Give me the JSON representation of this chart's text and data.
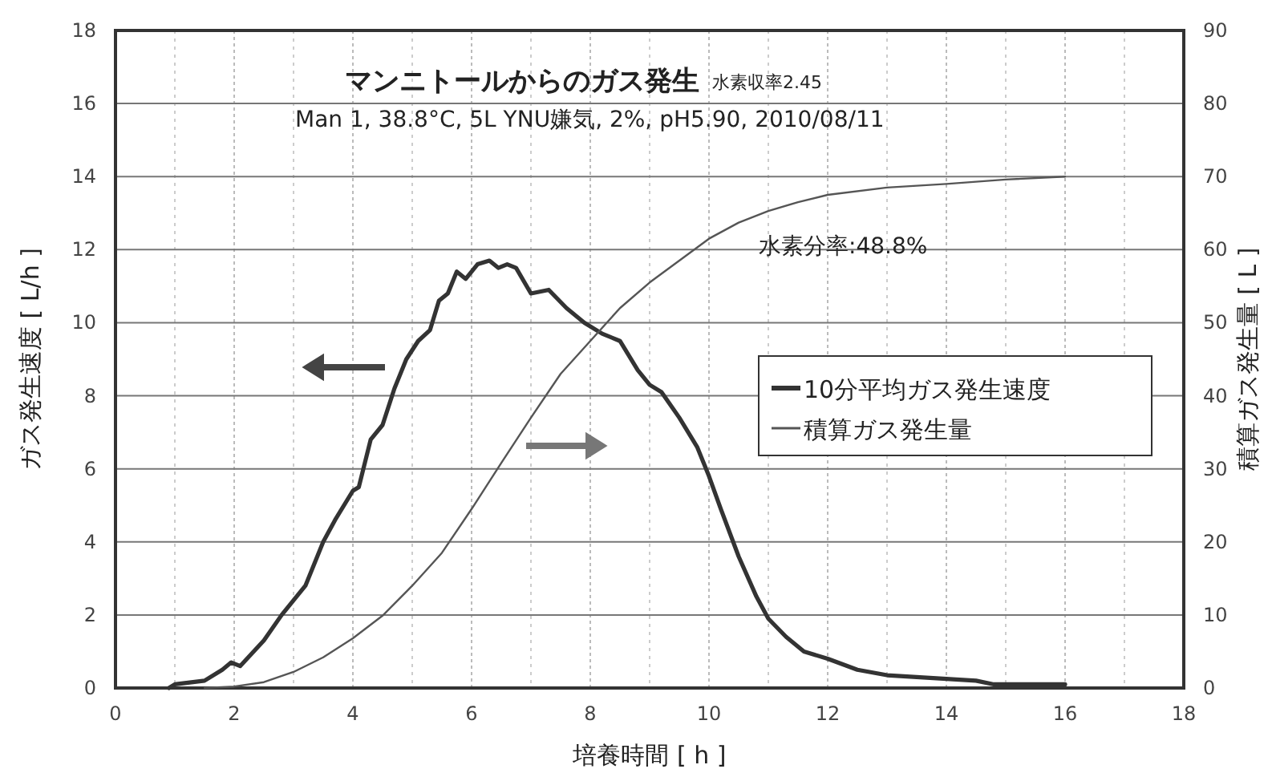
{
  "chart_data": {
    "type": "line",
    "title": "マンニトールからのガス発生",
    "subtitle": "Man 1, 38.8°C, 5L YNU嫌気, 2%, pH5.90, 2010/08/11",
    "xlabel": "培養時間 [ h ]",
    "ylabel": "ガス発生速度 [ L/h ]",
    "y2label": "積算ガス発生量 [ L ]",
    "annotations": [
      "水素収率2.45",
      "水素分率:48.8%"
    ],
    "xlim": [
      0,
      18
    ],
    "xticks": [
      0,
      2,
      4,
      6,
      8,
      10,
      12,
      14,
      16,
      18
    ],
    "ylim": [
      0,
      18
    ],
    "yticks": [
      0,
      2,
      4,
      6,
      8,
      10,
      12,
      14,
      16,
      18
    ],
    "y2lim": [
      0,
      90
    ],
    "y2ticks": [
      0,
      10,
      20,
      30,
      40,
      50,
      60,
      70,
      80,
      90
    ],
    "grid": true,
    "legend": "right",
    "line_style": "solid",
    "series": [
      {
        "name": "10分平均ガス発生速度",
        "color": "#333333",
        "x": [
          0.9,
          1.0,
          1.5,
          1.8,
          1.95,
          2.1,
          2.5,
          2.8,
          3.0,
          3.2,
          3.5,
          3.7,
          4.0,
          4.1,
          4.3,
          4.5,
          4.7,
          4.9,
          5.1,
          5.3,
          5.45,
          5.6,
          5.75,
          5.9,
          6.1,
          6.3,
          6.45,
          6.6,
          6.75,
          7.0,
          7.3,
          7.6,
          7.9,
          8.2,
          8.5,
          8.8,
          9.0,
          9.2,
          9.5,
          9.8,
          10.0,
          10.2,
          10.5,
          10.8,
          11.0,
          11.3,
          11.6,
          12.0,
          12.5,
          13.0,
          13.5,
          14.0,
          14.5,
          14.8,
          15.0,
          16.0
        ],
        "values": [
          0,
          0.1,
          0.2,
          0.5,
          0.7,
          0.6,
          1.3,
          2.0,
          2.4,
          2.8,
          4.0,
          4.6,
          5.4,
          5.5,
          6.8,
          7.2,
          8.2,
          9.0,
          9.5,
          9.8,
          10.6,
          10.8,
          11.4,
          11.2,
          11.6,
          11.7,
          11.5,
          11.6,
          11.5,
          10.8,
          10.9,
          10.4,
          10.0,
          9.7,
          9.5,
          8.7,
          8.3,
          8.1,
          7.4,
          6.6,
          5.8,
          4.9,
          3.6,
          2.5,
          1.9,
          1.4,
          1.0,
          0.8,
          0.5,
          0.35,
          0.3,
          0.25,
          0.2,
          0.1,
          0.1,
          0.1
        ]
      },
      {
        "name": "積算ガス発生量",
        "color": "#555555",
        "axis": "y2",
        "x": [
          1.5,
          2,
          2.5,
          3,
          3.5,
          4,
          4.5,
          5,
          5.5,
          6,
          6.5,
          7,
          7.5,
          8,
          8.5,
          9,
          9.5,
          10,
          10.5,
          11,
          11.5,
          12,
          13,
          14,
          15,
          16
        ],
        "values": [
          0,
          0.2,
          0.8,
          2.2,
          4.2,
          6.8,
          9.9,
          14,
          18.5,
          24.5,
          30.8,
          37,
          43,
          47.5,
          52,
          55.5,
          58.5,
          61.5,
          63.7,
          65.3,
          66.5,
          67.5,
          68.5,
          69,
          69.6,
          70
        ]
      }
    ]
  }
}
